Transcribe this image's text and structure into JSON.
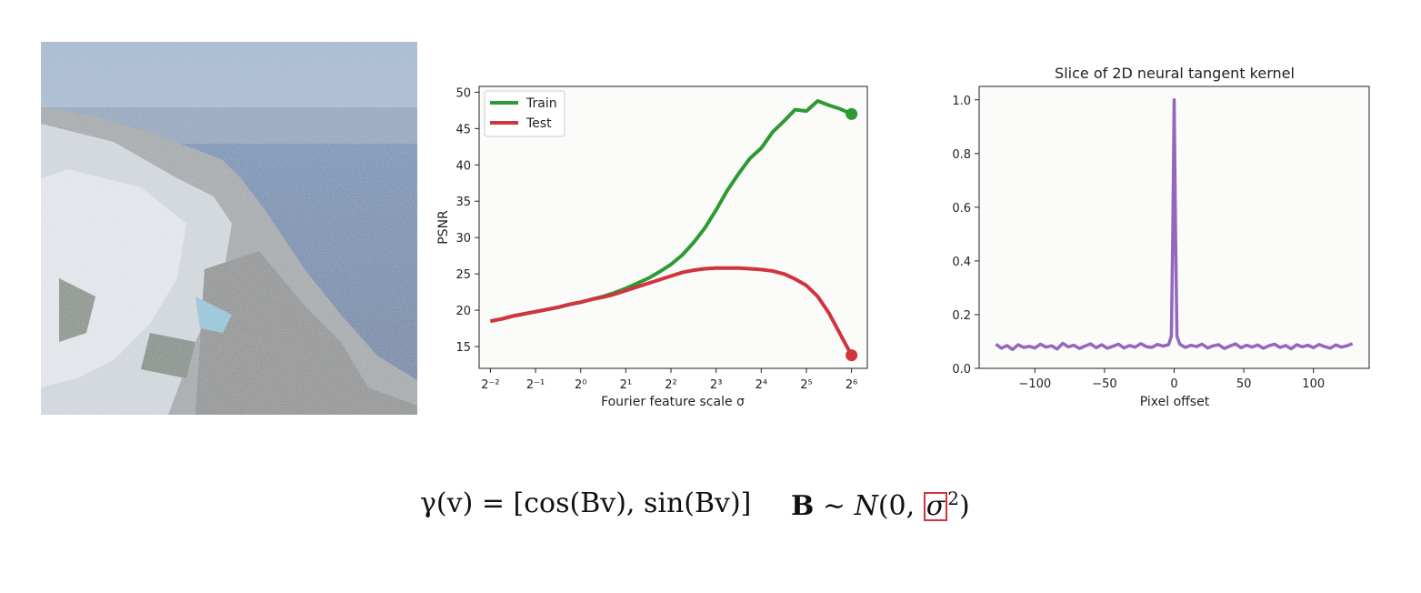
{
  "formulas": {
    "gamma": {
      "lhs": "γ(v)",
      "rhs": "[cos(Bv), sin(Bv)]"
    },
    "b_dist": {
      "lhs": "B",
      "op": "∼",
      "dist": "N",
      "args_prefix": "(0, ",
      "sigma": "σ",
      "power": "2",
      "close": ")"
    }
  },
  "chart_data": [
    {
      "type": "line",
      "title": "",
      "xlabel": "Fourier feature scale σ",
      "ylabel": "PSNR",
      "x_scale": "log2",
      "xlim": [
        -2.25,
        6.35
      ],
      "ylim": [
        12,
        50.8
      ],
      "x_ticks": [
        -2,
        -1,
        0,
        1,
        2,
        3,
        4,
        5,
        6
      ],
      "x_tick_labels": [
        "2⁻²",
        "2⁻¹",
        "2⁰",
        "2¹",
        "2²",
        "2³",
        "2⁴",
        "2⁵",
        "2⁶"
      ],
      "y_ticks": [
        15,
        20,
        25,
        30,
        35,
        40,
        45,
        50
      ],
      "legend_position": "top-left",
      "x": [
        -2,
        -1.75,
        -1.5,
        -1.25,
        -1,
        -0.75,
        -0.5,
        -0.25,
        0,
        0.25,
        0.5,
        0.75,
        1,
        1.25,
        1.5,
        1.75,
        2,
        2.25,
        2.5,
        2.75,
        3,
        3.25,
        3.5,
        3.75,
        4,
        4.25,
        4.5,
        4.75,
        5,
        5.25,
        5.5,
        5.75,
        6
      ],
      "series": [
        {
          "name": "Train",
          "color": "#2e9a34",
          "marker_at_last": true,
          "values": [
            18.5,
            18.8,
            19.2,
            19.5,
            19.8,
            20.1,
            20.4,
            20.8,
            21.1,
            21.5,
            21.9,
            22.4,
            23.0,
            23.7,
            24.4,
            25.3,
            26.3,
            27.6,
            29.3,
            31.3,
            33.8,
            36.5,
            38.8,
            40.9,
            42.3,
            44.5,
            46.0,
            47.6,
            47.4,
            48.8,
            48.2,
            47.7,
            47.0
          ]
        },
        {
          "name": "Test",
          "color": "#d0343c",
          "marker_at_last": true,
          "values": [
            18.5,
            18.8,
            19.2,
            19.5,
            19.8,
            20.1,
            20.4,
            20.8,
            21.1,
            21.5,
            21.8,
            22.2,
            22.7,
            23.2,
            23.7,
            24.2,
            24.7,
            25.2,
            25.5,
            25.7,
            25.8,
            25.8,
            25.8,
            25.7,
            25.6,
            25.4,
            25.0,
            24.3,
            23.4,
            21.9,
            19.6,
            16.7,
            13.8
          ]
        }
      ]
    },
    {
      "type": "line",
      "title": "Slice of 2D neural tangent kernel",
      "xlabel": "Pixel offset",
      "ylabel": "",
      "xlim": [
        -140,
        140
      ],
      "ylim": [
        0,
        1.05
      ],
      "x_ticks": [
        -100,
        -50,
        0,
        50,
        100
      ],
      "x_tick_labels": [
        "−100",
        "−50",
        "0",
        "50",
        "100"
      ],
      "y_ticks": [
        0,
        0.2,
        0.4,
        0.6,
        0.8,
        1.0
      ],
      "y_tick_labels": [
        "0.0",
        "0.2",
        "0.4",
        "0.6",
        "0.8",
        "1.0"
      ],
      "series": [
        {
          "name": "",
          "color": "#9467bd",
          "x": [
            -128,
            -124,
            -120,
            -116,
            -112,
            -108,
            -104,
            -100,
            -96,
            -92,
            -88,
            -84,
            -80,
            -76,
            -72,
            -68,
            -64,
            -60,
            -56,
            -52,
            -48,
            -44,
            -40,
            -36,
            -32,
            -28,
            -24,
            -20,
            -16,
            -12,
            -8,
            -4,
            -2,
            -1,
            0,
            1,
            2,
            4,
            8,
            12,
            16,
            20,
            24,
            28,
            32,
            36,
            40,
            44,
            48,
            52,
            56,
            60,
            64,
            68,
            72,
            76,
            80,
            84,
            88,
            92,
            96,
            100,
            104,
            108,
            112,
            116,
            120,
            124,
            128
          ],
          "values": [
            0.09,
            0.075,
            0.085,
            0.07,
            0.088,
            0.078,
            0.082,
            0.076,
            0.09,
            0.079,
            0.084,
            0.072,
            0.093,
            0.08,
            0.086,
            0.074,
            0.083,
            0.091,
            0.077,
            0.088,
            0.075,
            0.082,
            0.09,
            0.076,
            0.085,
            0.079,
            0.092,
            0.081,
            0.078,
            0.089,
            0.083,
            0.088,
            0.12,
            0.5,
            1.0,
            0.5,
            0.12,
            0.09,
            0.078,
            0.086,
            0.081,
            0.09,
            0.076,
            0.084,
            0.088,
            0.074,
            0.083,
            0.091,
            0.077,
            0.086,
            0.079,
            0.087,
            0.075,
            0.084,
            0.09,
            0.078,
            0.085,
            0.073,
            0.088,
            0.08,
            0.086,
            0.077,
            0.089,
            0.081,
            0.075,
            0.087,
            0.079,
            0.084,
            0.092
          ]
        }
      ]
    }
  ]
}
